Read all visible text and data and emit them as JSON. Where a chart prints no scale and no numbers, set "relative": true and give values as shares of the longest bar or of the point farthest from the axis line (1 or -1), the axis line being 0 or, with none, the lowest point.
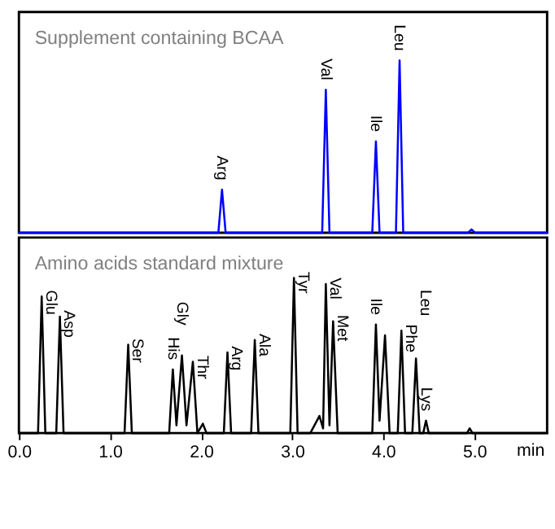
{
  "chart_data": [
    {
      "type": "line",
      "title": "Supplement containing BCAA",
      "relative": true,
      "xlim": [
        0,
        5.8
      ],
      "tick_labels": false,
      "series": [
        {
          "color": "#0000ff",
          "x": [
            0,
            2.19,
            2.23,
            2.27,
            3.33,
            3.37,
            3.41,
            3.88,
            3.92,
            3.96,
            4.14,
            4.18,
            4.22,
            4.93,
            4.97,
            5.01,
            5.8
          ],
          "values": [
            0,
            0,
            0.25,
            0,
            0,
            0.83,
            0,
            0,
            0.53,
            0,
            0,
            1,
            0,
            0,
            0.02,
            0,
            0
          ]
        }
      ],
      "annotations": [
        {
          "text": "Arg",
          "x": 2.23,
          "y": 0.25
        },
        {
          "text": "Val",
          "x": 3.37,
          "y": 0.83
        },
        {
          "text": "Ile",
          "x": 3.92,
          "y": 0.53
        },
        {
          "text": "Leu",
          "x": 4.18,
          "y": 1
        }
      ]
    },
    {
      "type": "line",
      "title": "Amino acids standard mixture",
      "relative": true,
      "xlim": [
        0,
        5.8
      ],
      "xlabel": "min",
      "tick_labels": "x",
      "xticks": [
        {
          "value": 0,
          "label": "0.0"
        },
        {
          "value": 1,
          "label": "1.0"
        },
        {
          "value": 2,
          "label": "2.0"
        },
        {
          "value": 3,
          "label": "3.0"
        },
        {
          "value": 4,
          "label": "4.0"
        },
        {
          "value": 5,
          "label": "5.0"
        }
      ],
      "series": [
        {
          "color": "#000000",
          "x": [
            0,
            0.21,
            0.25,
            0.29,
            0.41,
            0.45,
            0.49,
            1.16,
            1.2,
            1.24,
            1.65,
            1.69,
            1.73,
            1.79,
            1.84,
            1.91,
            1.96,
            2.02,
            2.06,
            2.25,
            2.29,
            2.33,
            2.55,
            2.59,
            2.63,
            2.98,
            3.02,
            3.06,
            3.2,
            3.3,
            3.34,
            3.37,
            3.41,
            3.45,
            3.5,
            3.88,
            3.92,
            3.96,
            4.02,
            4.07,
            4.16,
            4.2,
            4.24,
            4.32,
            4.36,
            4.4,
            4.44,
            4.47,
            4.5,
            4.92,
            4.95,
            4.98,
            5.8
          ],
          "values": [
            0,
            0,
            0.88,
            0,
            0,
            0.75,
            0,
            0,
            0.57,
            0,
            0,
            0.41,
            0.05,
            0.5,
            0.05,
            0.46,
            0,
            0.06,
            0,
            0,
            0.52,
            0,
            0,
            0.6,
            0,
            0,
            1,
            0,
            0,
            0.11,
            0.03,
            0.96,
            0.05,
            0.72,
            0,
            0,
            0.7,
            0.08,
            0.63,
            0,
            0,
            0.66,
            0,
            0,
            0.48,
            0,
            0,
            0.08,
            0,
            0,
            0.03,
            0,
            0
          ]
        }
      ],
      "annotations": [
        {
          "text": "Glu",
          "x": 0.25,
          "y": 0.88
        },
        {
          "text": "Asp",
          "x": 0.45,
          "y": 0.75
        },
        {
          "text": "Ser",
          "x": 1.2,
          "y": 0.57
        },
        {
          "text": "His",
          "x": 1.69,
          "y": 0.41
        },
        {
          "text": "Gly",
          "x": 1.79,
          "y": 0.5
        },
        {
          "text": "Thr",
          "x": 1.91,
          "y": 0.46
        },
        {
          "text": "Arg",
          "x": 2.29,
          "y": 0.52
        },
        {
          "text": "Ala",
          "x": 2.59,
          "y": 0.6
        },
        {
          "text": "Tyr",
          "x": 3.02,
          "y": 1
        },
        {
          "text": "Val",
          "x": 3.37,
          "y": 0.96
        },
        {
          "text": "Met",
          "x": 3.45,
          "y": 0.72
        },
        {
          "text": "Ile",
          "x": 3.92,
          "y": 0.7
        },
        {
          "text": "Phe",
          "x": 4.2,
          "y": 0.66
        },
        {
          "text": "Leu",
          "x": 4.36,
          "y": 0.48
        },
        {
          "text": "Lys",
          "x": 4.47,
          "y": 0.08
        }
      ]
    }
  ]
}
